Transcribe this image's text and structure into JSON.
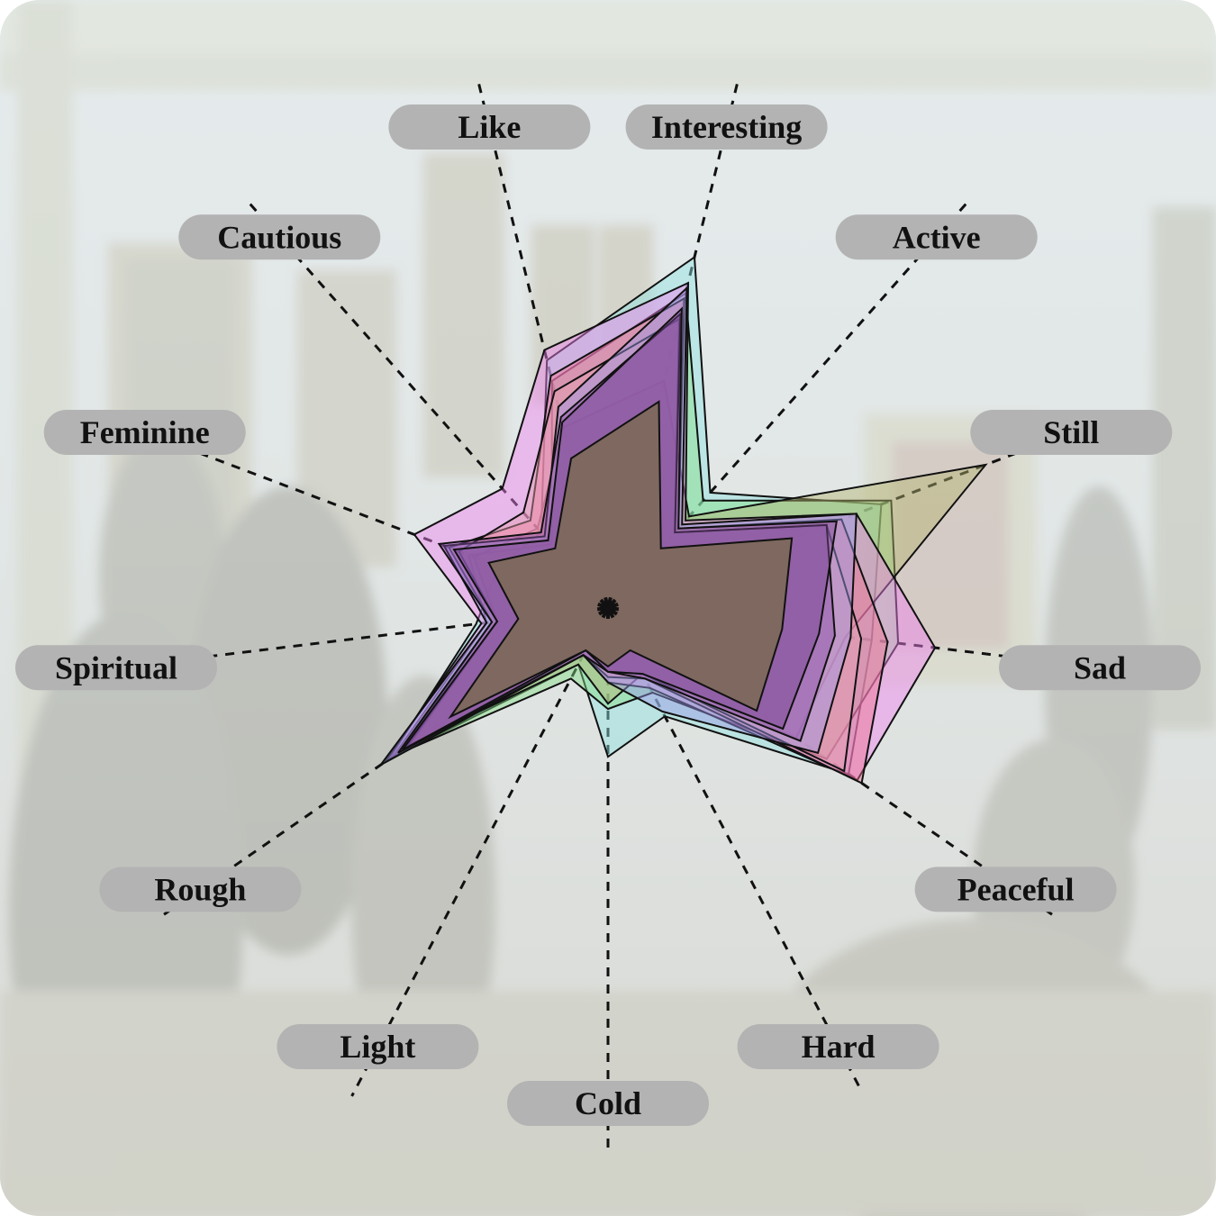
{
  "chart_data": {
    "type": "radar",
    "title": "",
    "background": "blurred photo of a museum gallery with paintings and visitors",
    "scale": [
      0,
      1
    ],
    "axes": [
      "Interesting",
      "Active",
      "Still",
      "Sad",
      "Peaceful",
      "Hard",
      "Cold",
      "Light",
      "Rough",
      "Spiritual",
      "Feminine",
      "Cautious",
      "Like"
    ],
    "series": [
      {
        "color": "#8fe3e3",
        "values": [
          0.68,
          0.29,
          0.55,
          0.5,
          0.55,
          0.23,
          0.28,
          0.12,
          0.5,
          0.25,
          0.22,
          0.19,
          0.48
        ]
      },
      {
        "color": "#86dd86",
        "values": [
          0.61,
          0.27,
          0.57,
          0.55,
          0.5,
          0.18,
          0.19,
          0.15,
          0.49,
          0.23,
          0.28,
          0.16,
          0.44
        ]
      },
      {
        "color": "#b3b36e",
        "values": [
          0.44,
          0.23,
          0.76,
          0.45,
          0.43,
          0.14,
          0.18,
          0.12,
          0.45,
          0.21,
          0.27,
          0.2,
          0.35
        ]
      },
      {
        "color": "#f080f0",
        "values": [
          0.63,
          0.22,
          0.5,
          0.62,
          0.57,
          0.17,
          0.14,
          0.1,
          0.51,
          0.24,
          0.39,
          0.3,
          0.5
        ]
      },
      {
        "color": "#f07090",
        "values": [
          0.6,
          0.2,
          0.47,
          0.53,
          0.58,
          0.15,
          0.13,
          0.1,
          0.47,
          0.22,
          0.32,
          0.22,
          0.45
        ]
      },
      {
        "color": "#e6a0b0",
        "values": [
          0.56,
          0.19,
          0.44,
          0.48,
          0.54,
          0.14,
          0.12,
          0.1,
          0.46,
          0.21,
          0.3,
          0.24,
          0.42
        ]
      },
      {
        "color": "#9a9ae8",
        "values": [
          0.62,
          0.21,
          0.5,
          0.46,
          0.48,
          0.22,
          0.14,
          0.1,
          0.52,
          0.23,
          0.33,
          0.18,
          0.39
        ]
      },
      {
        "color": "#8a50a8",
        "values": [
          0.57,
          0.19,
          0.44,
          0.43,
          0.44,
          0.15,
          0.12,
          0.1,
          0.48,
          0.22,
          0.34,
          0.19,
          0.37
        ]
      },
      {
        "color": "#7a4490",
        "values": [
          0.58,
          0.2,
          0.46,
          0.4,
          0.4,
          0.14,
          0.12,
          0.09,
          0.47,
          0.21,
          0.31,
          0.17,
          0.36
        ]
      },
      {
        "color": "#7a6a52",
        "values": [
          0.4,
          0.15,
          0.37,
          0.33,
          0.34,
          0.09,
          0.11,
          0.09,
          0.36,
          0.17,
          0.24,
          0.15,
          0.29
        ]
      }
    ]
  }
}
